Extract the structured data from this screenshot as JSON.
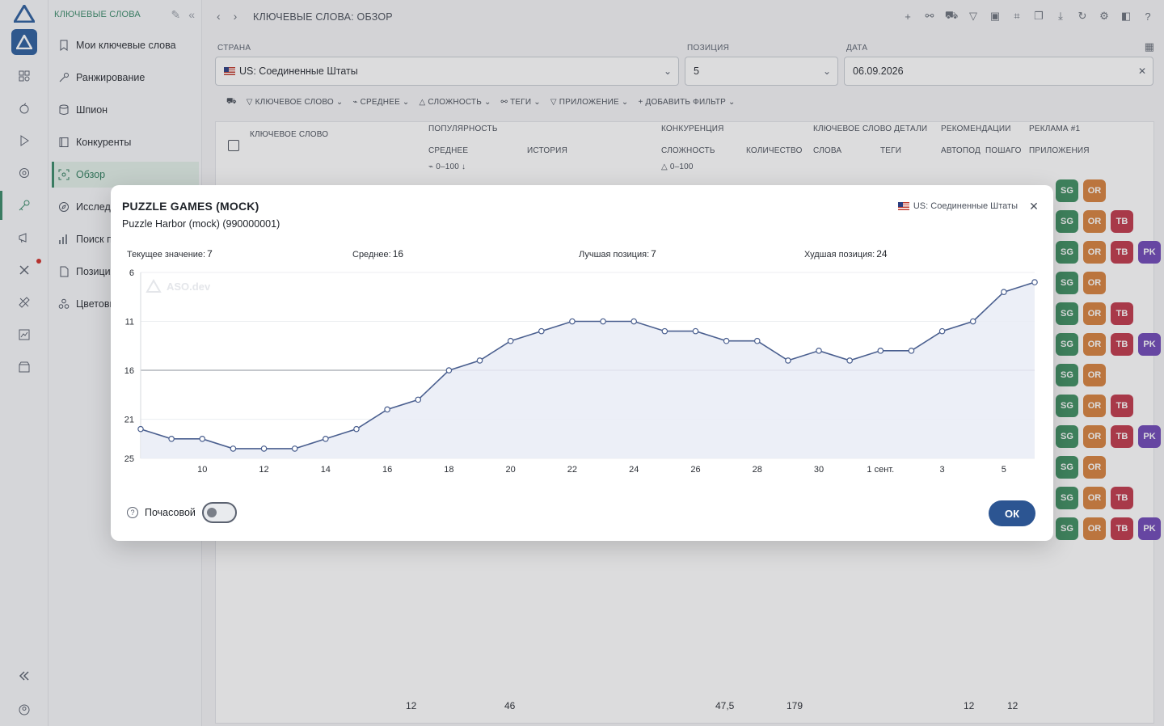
{
  "sidebar": {
    "header": "КЛЮЧЕВЫЕ СЛОВА",
    "items": [
      {
        "label": "Мои ключевые слова"
      },
      {
        "label": "Ранжирование"
      },
      {
        "label": "Шпион"
      },
      {
        "label": "Конкуренты"
      },
      {
        "label": "Обзор"
      },
      {
        "label": "Исследо"
      },
      {
        "label": "Поиск пр"
      },
      {
        "label": "Позиция"
      },
      {
        "label": "Цветовы"
      }
    ]
  },
  "header": {
    "title": "КЛЮЧЕВЫЕ СЛОВА: ОБЗОР"
  },
  "filters": {
    "country_label": "СТРАНА",
    "country_value": "US: Соединенные Штаты",
    "position_label": "ПОЗИЦИЯ",
    "position_value": "5",
    "date_label": "ДАТА",
    "date_value": "06.09.2026",
    "chips": [
      "КЛЮЧЕВОЕ СЛОВО",
      "СРЕДНЕЕ",
      "СЛОЖНОСТЬ",
      "ТЕГИ",
      "ПРИЛОЖЕНИЕ",
      "ДОБАВИТЬ ФИЛЬТР"
    ]
  },
  "table": {
    "col_keyword": "КЛЮЧЕВОЕ СЛОВО",
    "col_popularity": "ПОПУЛЯРНОСТЬ",
    "col_average": "СРЕДНЕЕ",
    "col_history": "ИСТОРИЯ",
    "col_competition": "КОНКУРЕНЦИЯ",
    "col_difficulty": "СЛОЖНОСТЬ",
    "col_count": "КОЛИЧЕСТВО",
    "col_keyword_details": "КЛЮЧЕВОЕ СЛОВО ДЕТАЛИ",
    "col_words": "СЛОВА",
    "col_tags": "ТЕГИ",
    "col_recommendations": "РЕКОМЕНДАЦИИ",
    "col_auto": "АВТОПОД",
    "col_step": "ПОШАГО",
    "col_ads": "РЕКЛАМА #1",
    "col_apps": "ПРИЛОЖЕНИЯ",
    "range_avg": "0–100",
    "range_diff": "0–100",
    "footer": [
      "12",
      "46",
      "47,5",
      "179",
      "12",
      "12"
    ],
    "tag_rows": [
      [
        "SG",
        "OR"
      ],
      [
        "SG",
        "OR",
        "TB"
      ],
      [
        "SG",
        "OR",
        "TB",
        "PK"
      ],
      [
        "SG",
        "OR"
      ],
      [
        "SG",
        "OR",
        "TB"
      ],
      [
        "SG",
        "OR",
        "TB",
        "PK"
      ],
      [
        "SG",
        "OR"
      ],
      [
        "SG",
        "OR",
        "TB"
      ],
      [
        "SG",
        "OR",
        "TB",
        "PK"
      ],
      [
        "SG",
        "OR"
      ],
      [
        "SG",
        "OR",
        "TB"
      ],
      [
        "SG",
        "OR",
        "TB",
        "PK"
      ]
    ]
  },
  "modal": {
    "title": "PUZZLE GAMES (MOCK)",
    "subtitle": "Puzzle Harbor (mock) (990000001)",
    "country": "US: Соединенные Штаты",
    "stats": {
      "current_label": "Текущее значение:",
      "current": "7",
      "avg_label": "Среднее:",
      "avg": "16",
      "best_label": "Лучшая позиция:",
      "best": "7",
      "worst_label": "Худшая позиция:",
      "worst": "24"
    },
    "hourly_label": "Почасовой",
    "ok_label": "ОК"
  },
  "chart_data": {
    "type": "area",
    "x": [
      "8 авг.",
      "9 авг.",
      "10 авг.",
      "11 авг.",
      "12 авг.",
      "13 авг.",
      "14 авг.",
      "15 авг.",
      "16 авг.",
      "17 авг.",
      "18 авг.",
      "19 авг.",
      "20 авг.",
      "21 авг.",
      "22 авг.",
      "23 авг.",
      "24 авг.",
      "25 авг.",
      "26 авг.",
      "27 авг.",
      "28 авг.",
      "29 авг.",
      "30 авг.",
      "31 авг.",
      "1 сент.",
      "2 сент.",
      "3 сент.",
      "4 сент.",
      "5 сент.",
      "6 сент."
    ],
    "series": [
      {
        "values": [
          22,
          23,
          23,
          24,
          24,
          24,
          23,
          22,
          20,
          19,
          16,
          15,
          13,
          12,
          11,
          11,
          11,
          12,
          12,
          13,
          13,
          15,
          14,
          15,
          14,
          14,
          12,
          11,
          8,
          7
        ]
      }
    ],
    "y_ticks": [
      "6",
      "11",
      "16",
      "21",
      "25"
    ],
    "x_ticks": [
      "10",
      "12",
      "14",
      "16",
      "18",
      "20",
      "22",
      "24",
      "26",
      "28",
      "30",
      "1 сент.",
      "3",
      "5"
    ],
    "ylim": [
      25,
      6
    ],
    "y_inverted": true,
    "reference_line": 16,
    "watermark": "ASO.dev",
    "colors": {
      "line": "#4a5f8f",
      "fill": "#e9ecf6"
    }
  }
}
